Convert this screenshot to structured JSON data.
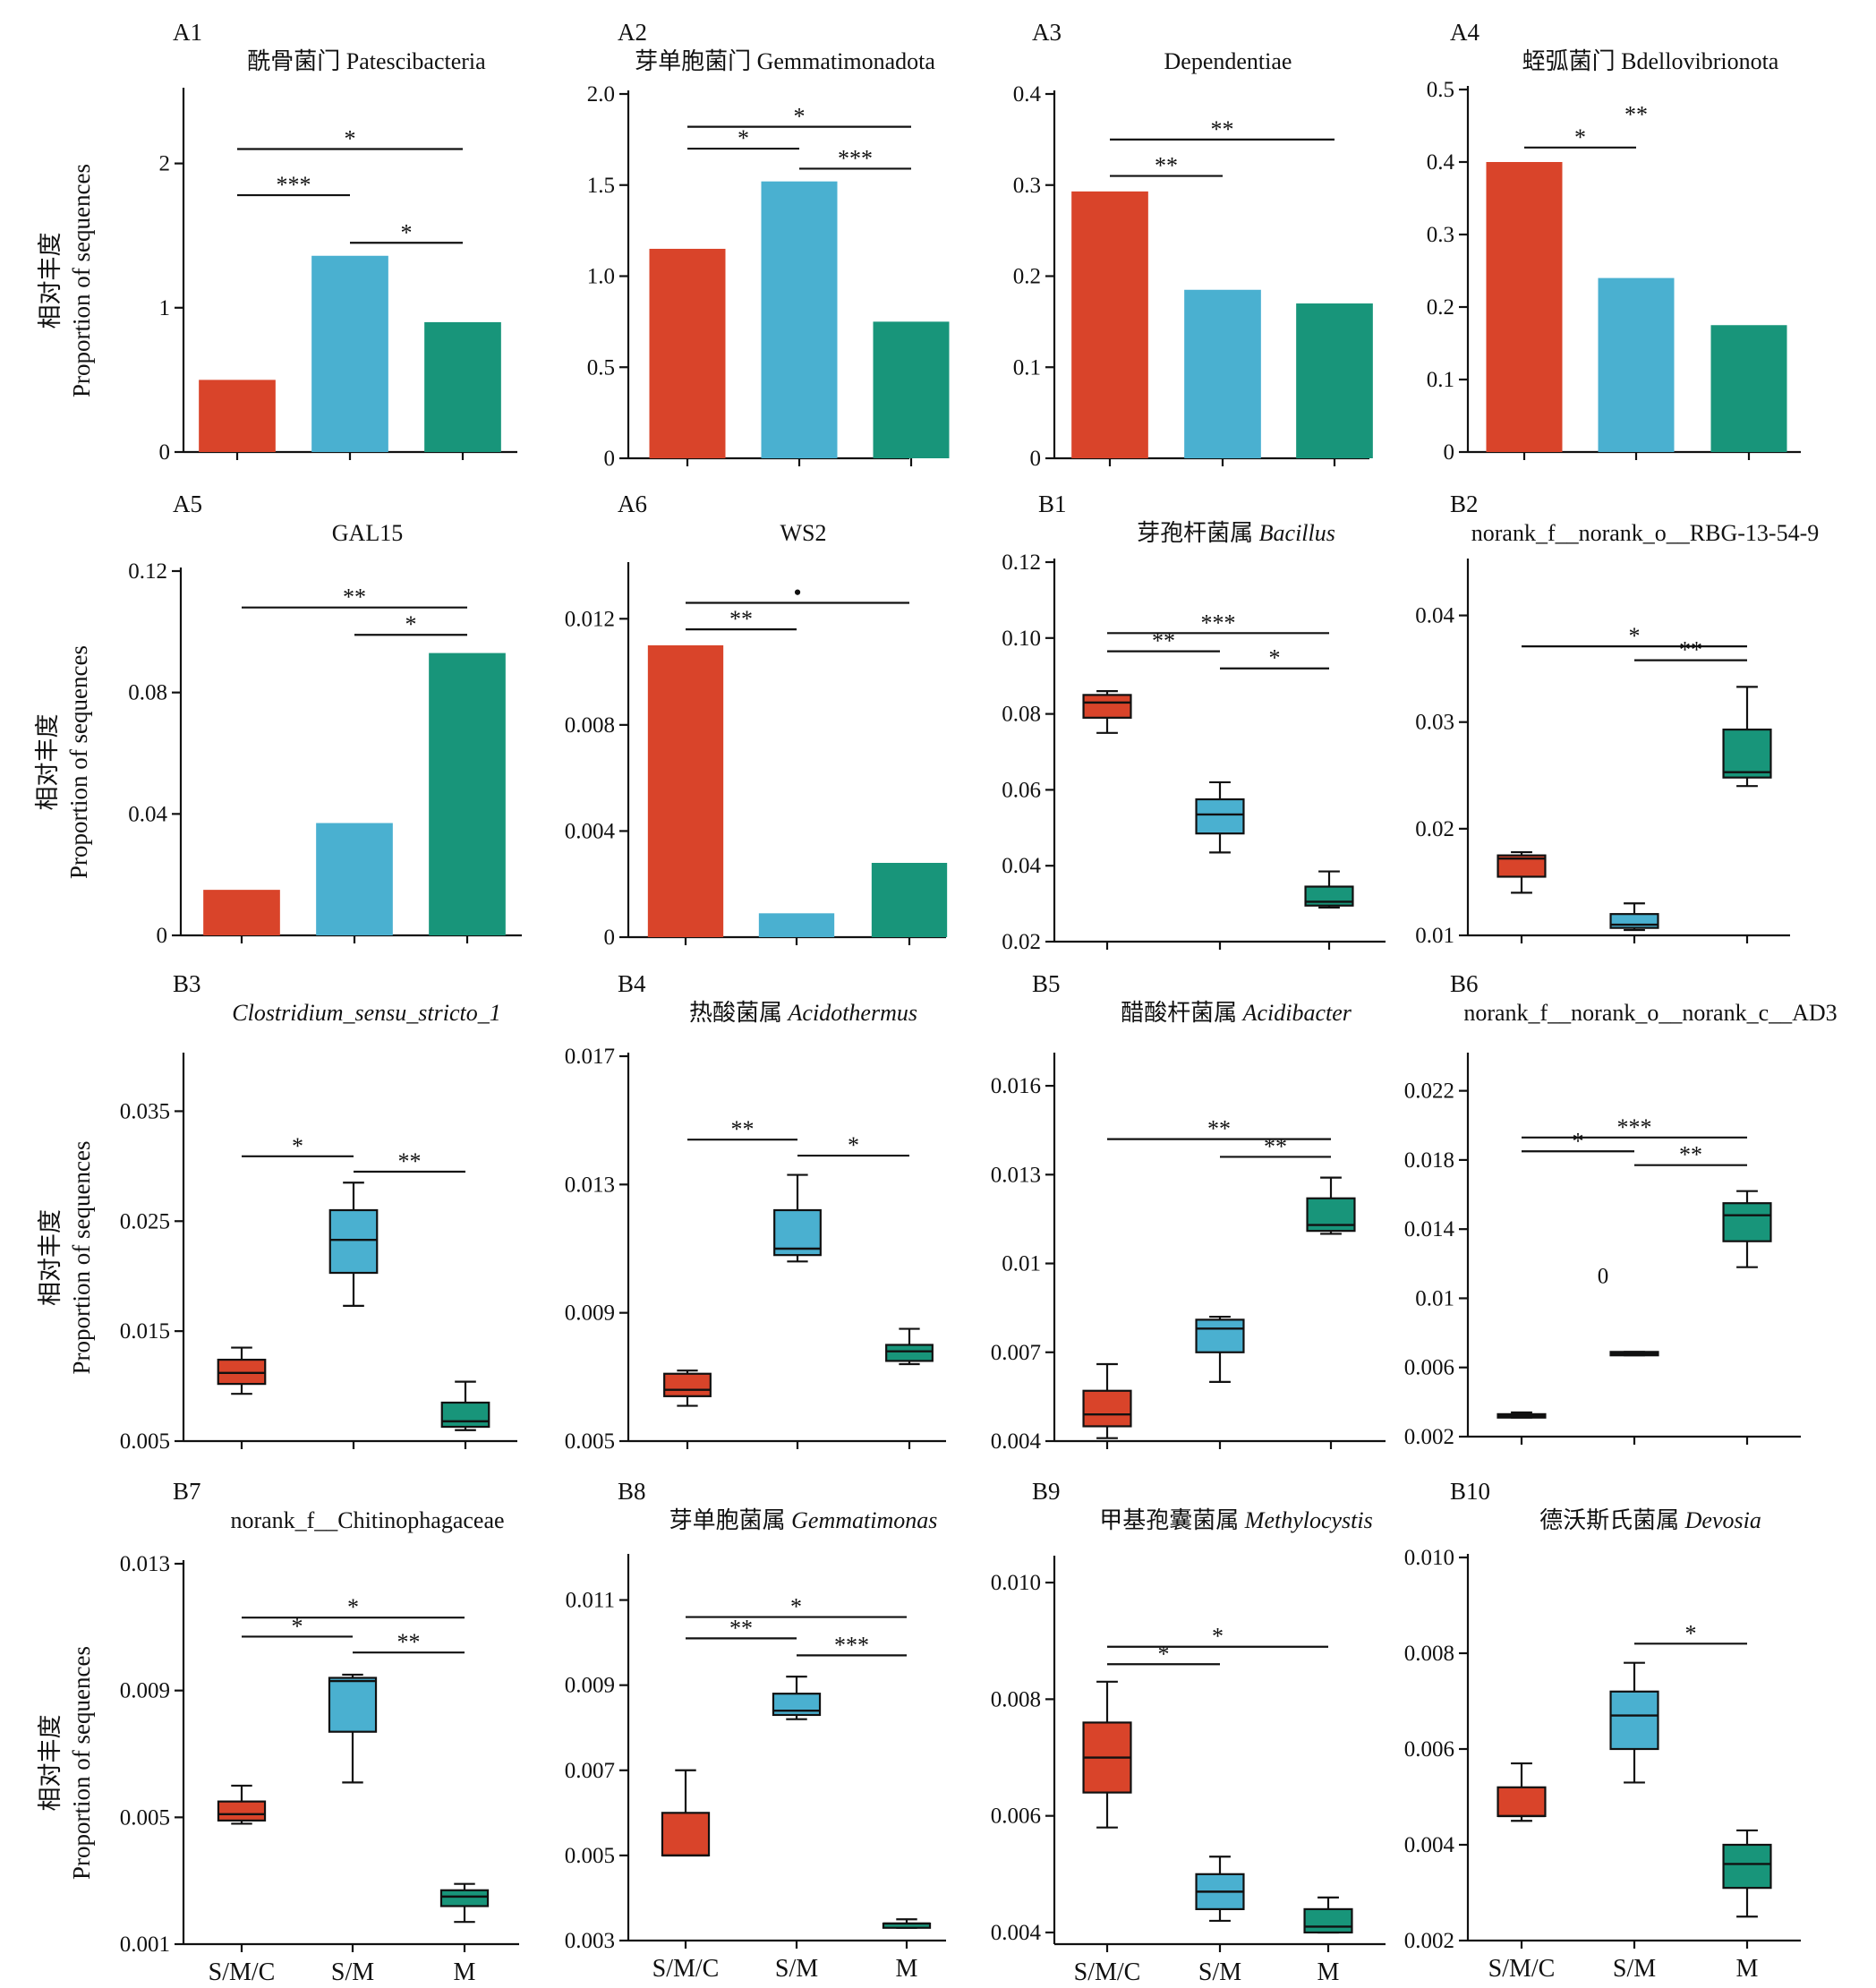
{
  "colors": {
    "S/M/C": "#d9442a",
    "S/M": "#4ab0d0",
    "M": "#18957a"
  },
  "chart_data": [
    {
      "id": "A1",
      "type": "bar",
      "title": "酰骨菌门 Patescibacteria",
      "ylabel_cn": "相对丰度",
      "ylabel": "Proportion of sequences",
      "categories": [
        "S/M/C",
        "S/M",
        "M"
      ],
      "values": [
        0.5,
        1.36,
        0.9
      ],
      "ylim": [
        0,
        2.5
      ],
      "yticks": [
        "0",
        "1",
        "2"
      ],
      "yticks_val": [
        0,
        1,
        2
      ],
      "sig": [
        {
          "a": 0,
          "b": 2,
          "t": "*"
        },
        {
          "a": 0,
          "b": 1,
          "t": "***"
        },
        {
          "a": 1,
          "b": 2,
          "t": "*"
        }
      ],
      "sig_y": [
        2.1,
        1.78,
        1.45
      ]
    },
    {
      "id": "A2",
      "type": "bar",
      "title": "芽单胞菌门 Gemmatimonadota",
      "categories": [
        "S/M/C",
        "S/M",
        "M"
      ],
      "values": [
        1.15,
        1.52,
        0.75
      ],
      "ylim": [
        0,
        2.0
      ],
      "yticks": [
        "0",
        "0.5",
        "1.0",
        "1.5",
        "2.0"
      ],
      "yticks_val": [
        0,
        0.5,
        1,
        1.5,
        2
      ],
      "sig": [
        {
          "a": 0,
          "b": 2,
          "t": "*"
        },
        {
          "a": 0,
          "b": 1,
          "t": "*"
        },
        {
          "a": 1,
          "b": 2,
          "t": "***"
        }
      ],
      "sig_y": [
        1.82,
        1.7,
        1.59
      ]
    },
    {
      "id": "A3",
      "type": "bar",
      "title": "Dependentiae",
      "categories": [
        "S/M/C",
        "S/M",
        "M"
      ],
      "values": [
        0.293,
        0.185,
        0.17
      ],
      "ylim": [
        0,
        0.4
      ],
      "yticks": [
        "0",
        "0.1",
        "0.2",
        "0.3",
        "0.4"
      ],
      "yticks_val": [
        0,
        0.1,
        0.2,
        0.3,
        0.4
      ],
      "sig": [
        {
          "a": 0,
          "b": 2,
          "t": "**"
        },
        {
          "a": 0,
          "b": 1,
          "t": "**"
        }
      ],
      "sig_y": [
        0.35,
        0.31
      ]
    },
    {
      "id": "A4",
      "type": "bar",
      "title": "蛭弧菌门 Bdellovibrionota",
      "categories": [
        "S/M/C",
        "S/M",
        "M"
      ],
      "values": [
        0.4,
        0.24,
        0.175
      ],
      "ylim": [
        0,
        0.5
      ],
      "yticks": [
        "0",
        "0.1",
        "0.2",
        "0.3",
        "0.4",
        "0.5"
      ],
      "yticks_val": [
        0,
        0.1,
        0.2,
        0.3,
        0.4,
        0.5
      ],
      "sig": [
        {
          "a": 0,
          "b": 1,
          "t": "*"
        }
      ],
      "sig_y": [
        0.42
      ],
      "extra": [
        {
          "text": "**",
          "x": 1.0,
          "y": 0.455
        }
      ]
    },
    {
      "id": "A5",
      "type": "bar",
      "title": "GAL15",
      "ylabel_cn": "相对丰度",
      "ylabel": "Proportion of sequences",
      "categories": [
        "S/M/C",
        "S/M",
        "M"
      ],
      "values": [
        0.015,
        0.037,
        0.093
      ],
      "ylim": [
        0,
        0.12
      ],
      "yticks": [
        "0",
        "0.04",
        "0.08",
        "0.12"
      ],
      "yticks_val": [
        0,
        0.04,
        0.08,
        0.12
      ],
      "sig": [
        {
          "a": 0,
          "b": 2,
          "t": "**"
        },
        {
          "a": 1,
          "b": 2,
          "t": "*"
        }
      ],
      "sig_y": [
        0.108,
        0.099
      ]
    },
    {
      "id": "A6",
      "type": "bar",
      "title": "WS2",
      "categories": [
        "S/M/C",
        "S/M",
        "M"
      ],
      "values": [
        0.011,
        0.0009,
        0.0028
      ],
      "ylim": [
        0,
        0.014
      ],
      "yticks": [
        "0",
        "0.004",
        "0.008",
        "0.012"
      ],
      "yticks_val": [
        0,
        0.004,
        0.008,
        0.012
      ],
      "sig": [
        {
          "a": 0,
          "b": 2,
          "t": "•"
        },
        {
          "a": 0,
          "b": 1,
          "t": "**"
        }
      ],
      "sig_y": [
        0.0126,
        0.0116
      ]
    },
    {
      "id": "B1",
      "type": "box",
      "title_cn": "芽孢杆菌属 ",
      "title_it": "Bacillus",
      "categories": [
        "S/M/C",
        "S/M",
        "M"
      ],
      "boxes": [
        {
          "min": 0.075,
          "q1": 0.079,
          "med": 0.083,
          "q3": 0.085,
          "max": 0.086
        },
        {
          "min": 0.0435,
          "q1": 0.0485,
          "med": 0.0535,
          "q3": 0.0575,
          "max": 0.062
        },
        {
          "min": 0.029,
          "q1": 0.0295,
          "med": 0.0305,
          "q3": 0.0345,
          "max": 0.0385
        }
      ],
      "ylim": [
        0.02,
        0.12
      ],
      "yticks": [
        "0.02",
        "0.04",
        "0.06",
        "0.08",
        "0.10",
        "0.12"
      ],
      "yticks_val": [
        0.02,
        0.04,
        0.06,
        0.08,
        0.1,
        0.12
      ],
      "sig": [
        {
          "a": 0,
          "b": 2,
          "t": "***"
        },
        {
          "a": 0,
          "b": 1,
          "t": "**"
        },
        {
          "a": 1,
          "b": 2,
          "t": "*"
        }
      ],
      "sig_y": [
        0.1013,
        0.0965,
        0.092
      ]
    },
    {
      "id": "B2",
      "type": "box",
      "title": "norank_f__norank_o__RBG-13-54-9",
      "categories": [
        "S/M/C",
        "S/M",
        "M"
      ],
      "boxes": [
        {
          "min": 0.014,
          "q1": 0.0155,
          "med": 0.0172,
          "q3": 0.0175,
          "max": 0.0178
        },
        {
          "min": 0.0105,
          "q1": 0.0107,
          "med": 0.011,
          "q3": 0.012,
          "max": 0.013
        },
        {
          "min": 0.024,
          "q1": 0.0248,
          "med": 0.0253,
          "q3": 0.0293,
          "max": 0.0333
        }
      ],
      "ylim": [
        0.01,
        0.045
      ],
      "yticks": [
        "0.01",
        "0.02",
        "0.03",
        "0.04"
      ],
      "yticks_val": [
        0.01,
        0.02,
        0.03,
        0.04
      ],
      "sig": [
        {
          "a": 0,
          "b": 2,
          "t": "*"
        },
        {
          "a": 1,
          "b": 2,
          "t": "**"
        }
      ],
      "sig_y": [
        0.0371,
        0.0358
      ]
    },
    {
      "id": "B3",
      "type": "box",
      "title_it": "Clostridium_sensu_stricto_1",
      "ylabel_cn": "相对丰度",
      "ylabel": "Proportion of sequences",
      "categories": [
        "S/M/C",
        "S/M",
        "M"
      ],
      "boxes": [
        {
          "min": 0.0093,
          "q1": 0.0102,
          "med": 0.0112,
          "q3": 0.0124,
          "max": 0.0135
        },
        {
          "min": 0.0173,
          "q1": 0.0203,
          "med": 0.0233,
          "q3": 0.026,
          "max": 0.0285
        },
        {
          "min": 0.006,
          "q1": 0.0063,
          "med": 0.0068,
          "q3": 0.0085,
          "max": 0.0104
        }
      ],
      "ylim": [
        0.005,
        0.04
      ],
      "yticks": [
        "0.005",
        "0.015",
        "0.025",
        "0.035"
      ],
      "yticks_val": [
        0.005,
        0.015,
        0.025,
        0.035
      ],
      "sig": [
        {
          "a": 0,
          "b": 1,
          "t": "*"
        },
        {
          "a": 1,
          "b": 2,
          "t": "**"
        }
      ],
      "sig_y": [
        0.0309,
        0.0295
      ]
    },
    {
      "id": "B4",
      "type": "box",
      "title_cn": "热酸菌属 ",
      "title_it": "Acidothermus",
      "categories": [
        "S/M/C",
        "S/M",
        "M"
      ],
      "boxes": [
        {
          "min": 0.0061,
          "q1": 0.0064,
          "med": 0.0066,
          "q3": 0.0071,
          "max": 0.0072
        },
        {
          "min": 0.0106,
          "q1": 0.0108,
          "med": 0.011,
          "q3": 0.0122,
          "max": 0.0133
        },
        {
          "min": 0.0074,
          "q1": 0.0075,
          "med": 0.0078,
          "q3": 0.008,
          "max": 0.0085
        }
      ],
      "ylim": [
        0.005,
        0.017
      ],
      "yticks": [
        "0.005",
        "0.009",
        "0.013",
        "0.017"
      ],
      "yticks_val": [
        0.005,
        0.009,
        0.013,
        0.017
      ],
      "sig": [
        {
          "a": 0,
          "b": 1,
          "t": "**"
        },
        {
          "a": 1,
          "b": 2,
          "t": "*"
        }
      ],
      "sig_y": [
        0.0144,
        0.0139
      ]
    },
    {
      "id": "B5",
      "type": "box",
      "title_cn": "醋酸杆菌属 ",
      "title_it": "Acidibacter",
      "categories": [
        "S/M/C",
        "S/M",
        "M"
      ],
      "boxes": [
        {
          "min": 0.0041,
          "q1": 0.0045,
          "med": 0.0049,
          "q3": 0.0057,
          "max": 0.0066
        },
        {
          "min": 0.006,
          "q1": 0.007,
          "med": 0.0078,
          "q3": 0.0081,
          "max": 0.0082
        },
        {
          "min": 0.011,
          "q1": 0.0111,
          "med": 0.0113,
          "q3": 0.0122,
          "max": 0.0129
        }
      ],
      "ylim": [
        0.004,
        0.017
      ],
      "yticks": [
        "0.004",
        "0.007",
        "0.01",
        "0.013",
        "0.016"
      ],
      "yticks_val": [
        0.004,
        0.007,
        0.01,
        0.013,
        0.016
      ],
      "sig": [
        {
          "a": 0,
          "b": 2,
          "t": "**"
        },
        {
          "a": 1,
          "b": 2,
          "t": "**"
        }
      ],
      "sig_y": [
        0.0142,
        0.0136
      ]
    },
    {
      "id": "B6",
      "type": "box",
      "title": "norank_f__norank_o__norank_c__AD3",
      "categories": [
        "S/M/C",
        "S/M",
        "M"
      ],
      "boxes": [
        {
          "min": 0.0031,
          "q1": 0.0031,
          "med": 0.0032,
          "q3": 0.0033,
          "max": 0.0034
        },
        {
          "min": 0.0067,
          "q1": 0.0067,
          "med": 0.0068,
          "q3": 0.0069,
          "max": 0.0069
        },
        {
          "min": 0.0118,
          "q1": 0.0133,
          "med": 0.0148,
          "q3": 0.0155,
          "max": 0.0162
        }
      ],
      "ylim": [
        0.002,
        0.024
      ],
      "yticks": [
        "0.002",
        "0.006",
        "0.01",
        "0.014",
        "0.018",
        "0.022"
      ],
      "yticks_val": [
        0.002,
        0.006,
        0.01,
        0.014,
        0.018,
        0.022
      ],
      "sig": [
        {
          "a": 0,
          "b": 2,
          "t": "***"
        },
        {
          "a": 0,
          "b": 1,
          "t": "*"
        },
        {
          "a": 1,
          "b": 2,
          "t": "**"
        }
      ],
      "sig_y": [
        0.0193,
        0.0185,
        0.0177
      ]
    },
    {
      "id": "B7",
      "type": "box",
      "title": "norank_f__Chitinophagaceae",
      "ylabel_cn": "相对丰度",
      "ylabel": "Proportion of sequences",
      "categories": [
        "S/M/C",
        "S/M",
        "M"
      ],
      "boxes": [
        {
          "min": 0.0048,
          "q1": 0.0049,
          "med": 0.0051,
          "q3": 0.0055,
          "max": 0.006
        },
        {
          "min": 0.0061,
          "q1": 0.0077,
          "med": 0.0093,
          "q3": 0.0094,
          "max": 0.0095
        },
        {
          "min": 0.0017,
          "q1": 0.0022,
          "med": 0.0025,
          "q3": 0.0027,
          "max": 0.0029
        }
      ],
      "ylim": [
        0.001,
        0.013
      ],
      "yticks": [
        "0.001",
        "0.005",
        "0.009",
        "0.013"
      ],
      "yticks_val": [
        0.001,
        0.005,
        0.009,
        0.013
      ],
      "sig": [
        {
          "a": 0,
          "b": 2,
          "t": "*"
        },
        {
          "a": 0,
          "b": 1,
          "t": "*"
        },
        {
          "a": 1,
          "b": 2,
          "t": "**"
        }
      ],
      "sig_y": [
        0.0113,
        0.0107,
        0.0102
      ]
    },
    {
      "id": "B8",
      "type": "box",
      "title_cn": "芽单胞菌属 ",
      "title_it": "Gemmatimonas",
      "categories": [
        "S/M/C",
        "S/M",
        "M"
      ],
      "boxes": [
        {
          "min": 0.005,
          "q1": 0.005,
          "med": 0.005,
          "q3": 0.006,
          "max": 0.007
        },
        {
          "min": 0.0082,
          "q1": 0.0083,
          "med": 0.0084,
          "q3": 0.0088,
          "max": 0.0092
        },
        {
          "min": 0.0033,
          "q1": 0.0033,
          "med": 0.0034,
          "q3": 0.0034,
          "max": 0.0035
        }
      ],
      "ylim": [
        0.003,
        0.012
      ],
      "yticks": [
        "0.003",
        "0.005",
        "0.007",
        "0.009",
        "0.011"
      ],
      "yticks_val": [
        0.003,
        0.005,
        0.007,
        0.009,
        0.011
      ],
      "sig": [
        {
          "a": 0,
          "b": 2,
          "t": "*"
        },
        {
          "a": 0,
          "b": 1,
          "t": "**"
        },
        {
          "a": 1,
          "b": 2,
          "t": "***"
        }
      ],
      "sig_y": [
        0.0106,
        0.0101,
        0.0097
      ]
    },
    {
      "id": "B9",
      "type": "box",
      "title_cn": "甲基孢囊菌属 ",
      "title_it": "Methylocystis",
      "categories": [
        "S/M/C",
        "S/M",
        "M"
      ],
      "boxes": [
        {
          "min": 0.0058,
          "q1": 0.0064,
          "med": 0.007,
          "q3": 0.0076,
          "max": 0.0083
        },
        {
          "min": 0.0042,
          "q1": 0.0044,
          "med": 0.0047,
          "q3": 0.005,
          "max": 0.0053
        },
        {
          "min": 0.004,
          "q1": 0.004,
          "med": 0.0041,
          "q3": 0.0044,
          "max": 0.0046
        }
      ],
      "ylim": [
        0.0038,
        0.0104
      ],
      "yticks": [
        "0.004",
        "0.006",
        "0.008",
        "0.010"
      ],
      "yticks_val": [
        0.004,
        0.006,
        0.008,
        0.01
      ],
      "sig": [
        {
          "a": 0,
          "b": 2,
          "t": "*"
        },
        {
          "a": 0,
          "b": 1,
          "t": "*"
        }
      ],
      "sig_y": [
        0.0089,
        0.0086
      ]
    },
    {
      "id": "B10",
      "type": "box",
      "title_cn": "德沃斯氏菌属 ",
      "title_it": "Devosia",
      "categories": [
        "S/M/C",
        "S/M",
        "M"
      ],
      "boxes": [
        {
          "min": 0.0045,
          "q1": 0.0046,
          "med": 0.0046,
          "q3": 0.0052,
          "max": 0.0057
        },
        {
          "min": 0.0053,
          "q1": 0.006,
          "med": 0.0067,
          "q3": 0.0072,
          "max": 0.0078
        },
        {
          "min": 0.0025,
          "q1": 0.0031,
          "med": 0.0036,
          "q3": 0.004,
          "max": 0.0043
        }
      ],
      "ylim": [
        0.002,
        0.01
      ],
      "yticks": [
        "0.002",
        "0.004",
        "0.006",
        "0.008",
        "0.010"
      ],
      "yticks_val": [
        0.002,
        0.004,
        0.006,
        0.008,
        0.01
      ],
      "sig": [
        {
          "a": 1,
          "b": 2,
          "t": "*"
        }
      ],
      "sig_y": [
        0.0082
      ]
    }
  ],
  "annotations": {
    "B6_zero": "0"
  },
  "x_labels": [
    "S/M/C",
    "S/M",
    "M"
  ]
}
